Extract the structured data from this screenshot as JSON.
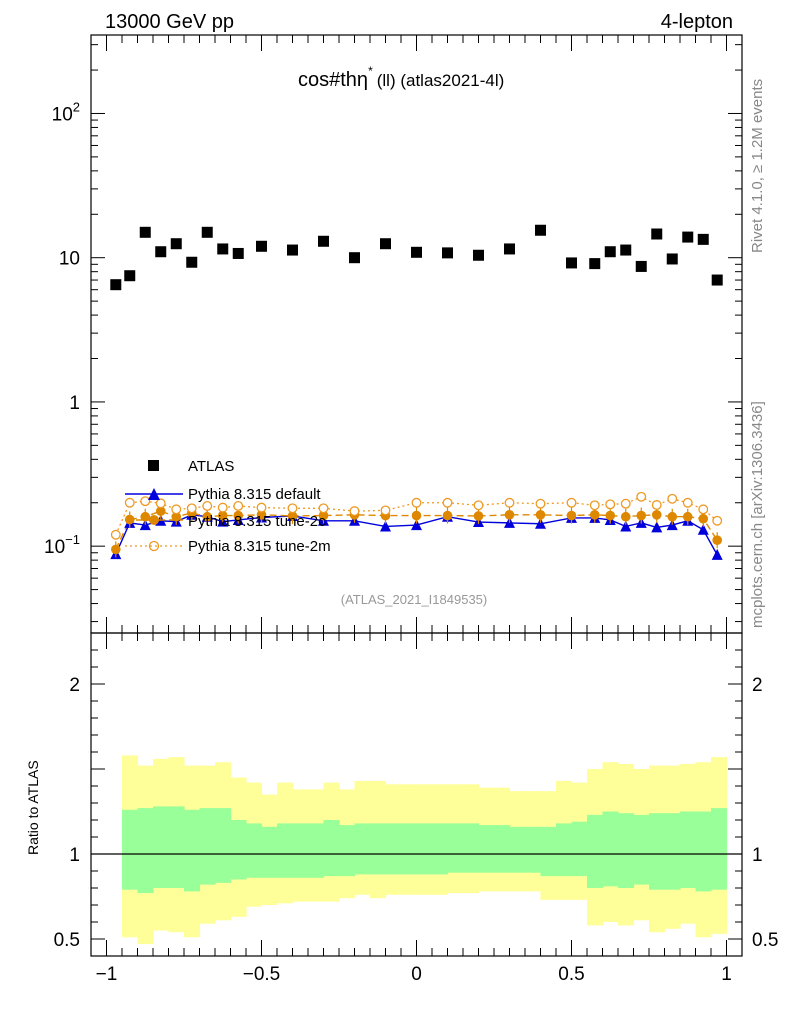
{
  "header": {
    "left": "13000 GeV pp",
    "right": "4-lepton"
  },
  "side": {
    "top": "Rivet 4.1.0, ≥ 1.2M events",
    "bottom": "mcplots.cern.ch [arXiv:1306.3436]"
  },
  "chart_data": {
    "type": "scatter",
    "title": "cos#thη",
    "title_sup": "*",
    "title_rest": "(ll) (atlas2021-4l)",
    "analysis_label": "(ATLAS_2021_I1849535)",
    "xlim": [
      -1.05,
      1.05
    ],
    "ylim_main": [
      0.025,
      350
    ],
    "yscale_main": "log",
    "ylim_ratio": [
      0.4,
      2.3
    ],
    "ylabel_ratio": "Ratio to ATLAS",
    "x_ticks": [
      {
        "v": -1,
        "label": "−1"
      },
      {
        "v": -0.5,
        "label": "−0.5"
      },
      {
        "v": 0,
        "label": "0"
      },
      {
        "v": 0.5,
        "label": "0.5"
      },
      {
        "v": 1,
        "label": "1"
      }
    ],
    "y_ticks_main": [
      {
        "v": 0.1,
        "label": "10",
        "exp": "−1"
      },
      {
        "v": 1,
        "label": "1",
        "exp": ""
      },
      {
        "v": 10,
        "label": "10",
        "exp": ""
      },
      {
        "v": 100,
        "label": "10",
        "exp": "2"
      }
    ],
    "y_ticks_ratio": [
      {
        "v": 0.5,
        "label": "0.5"
      },
      {
        "v": 1,
        "label": "1"
      },
      {
        "v": 2,
        "label": "2"
      }
    ],
    "legend": [
      "ATLAS",
      "Pythia 8.315 default",
      "Pythia 8.315 tune-2c",
      "Pythia 8.315 tune-2m"
    ],
    "x": [
      -0.97,
      -0.925,
      -0.875,
      -0.825,
      -0.775,
      -0.725,
      -0.675,
      -0.625,
      -0.575,
      -0.5,
      -0.4,
      -0.3,
      -0.2,
      -0.1,
      0.0,
      0.1,
      0.2,
      0.3,
      0.4,
      0.5,
      0.575,
      0.625,
      0.675,
      0.725,
      0.775,
      0.825,
      0.875,
      0.925,
      0.97
    ],
    "series": [
      {
        "name": "ATLAS",
        "color": "#000000",
        "marker": "square",
        "values": [
          6.5,
          7.5,
          15,
          11,
          12.5,
          9.3,
          15,
          11.5,
          10.7,
          12,
          11.3,
          13,
          10,
          12.5,
          10.9,
          10.8,
          10.4,
          11.5,
          15.5,
          9.2,
          9.1,
          11,
          11.3,
          8.7,
          14.6,
          9.8,
          13.9,
          13.4,
          7
        ]
      },
      {
        "name": "Pythia 8.315 default",
        "color": "#0000dd",
        "marker": "triangle",
        "values": [
          0.088,
          0.145,
          0.14,
          0.15,
          0.148,
          0.165,
          0.16,
          0.148,
          0.152,
          0.158,
          0.162,
          0.15,
          0.15,
          0.137,
          0.14,
          0.16,
          0.147,
          0.145,
          0.143,
          0.157,
          0.157,
          0.152,
          0.137,
          0.145,
          0.135,
          0.14,
          0.15,
          0.13,
          0.087
        ]
      },
      {
        "name": "Pythia 8.315 tune-2c",
        "color": "#dd8800",
        "marker": "circle",
        "values": [
          0.095,
          0.153,
          0.16,
          0.175,
          0.16,
          0.17,
          0.16,
          0.163,
          0.163,
          0.165,
          0.162,
          0.163,
          0.165,
          0.163,
          0.163,
          0.163,
          0.162,
          0.165,
          0.165,
          0.163,
          0.165,
          0.163,
          0.16,
          0.163,
          0.165,
          0.16,
          0.16,
          0.155,
          0.11
        ]
      },
      {
        "name": "Pythia 8.315 tune-2m",
        "color": "#ee9922",
        "marker": "open-circle",
        "values": [
          0.12,
          0.2,
          0.205,
          0.198,
          0.18,
          0.183,
          0.19,
          0.185,
          0.19,
          0.185,
          0.183,
          0.183,
          0.175,
          0.177,
          0.2,
          0.2,
          0.192,
          0.2,
          0.197,
          0.2,
          0.192,
          0.195,
          0.197,
          0.22,
          0.193,
          0.213,
          0.2,
          0.18,
          0.15
        ]
      }
    ],
    "ratio_bands": {
      "x_edges": [
        -0.95,
        -0.9,
        -0.85,
        -0.8,
        -0.75,
        -0.7,
        -0.65,
        -0.6,
        -0.55,
        -0.5,
        -0.45,
        -0.4,
        -0.35,
        -0.3,
        -0.25,
        -0.2,
        -0.15,
        -0.1,
        -0.05,
        0.0,
        0.05,
        0.1,
        0.15,
        0.2,
        0.25,
        0.3,
        0.35,
        0.4,
        0.45,
        0.5,
        0.55,
        0.6,
        0.65,
        0.7,
        0.75,
        0.8,
        0.85,
        0.9,
        0.95,
        1.0
      ],
      "yellow": [
        [
          0.51,
          1.58
        ],
        [
          0.47,
          1.52
        ],
        [
          0.55,
          1.56
        ],
        [
          0.54,
          1.57
        ],
        [
          0.51,
          1.52
        ],
        [
          0.59,
          1.52
        ],
        [
          0.61,
          1.54
        ],
        [
          0.63,
          1.45
        ],
        [
          0.69,
          1.42
        ],
        [
          0.7,
          1.35
        ],
        [
          0.71,
          1.42
        ],
        [
          0.72,
          1.38
        ],
        [
          0.72,
          1.38
        ],
        [
          0.72,
          1.42
        ],
        [
          0.74,
          1.38
        ],
        [
          0.76,
          1.43
        ],
        [
          0.74,
          1.43
        ],
        [
          0.76,
          1.41
        ],
        [
          0.76,
          1.41
        ],
        [
          0.76,
          1.41
        ],
        [
          0.76,
          1.41
        ],
        [
          0.77,
          1.41
        ],
        [
          0.77,
          1.41
        ],
        [
          0.78,
          1.39
        ],
        [
          0.78,
          1.39
        ],
        [
          0.78,
          1.37
        ],
        [
          0.78,
          1.37
        ],
        [
          0.73,
          1.37
        ],
        [
          0.73,
          1.43
        ],
        [
          0.73,
          1.42
        ],
        [
          0.58,
          1.5
        ],
        [
          0.6,
          1.54
        ],
        [
          0.58,
          1.53
        ],
        [
          0.61,
          1.5
        ],
        [
          0.54,
          1.52
        ],
        [
          0.56,
          1.52
        ],
        [
          0.59,
          1.53
        ],
        [
          0.51,
          1.54
        ],
        [
          0.53,
          1.57
        ]
      ],
      "green": [
        [
          0.79,
          1.26
        ],
        [
          0.77,
          1.27
        ],
        [
          0.8,
          1.28
        ],
        [
          0.8,
          1.28
        ],
        [
          0.78,
          1.26
        ],
        [
          0.82,
          1.27
        ],
        [
          0.83,
          1.27
        ],
        [
          0.85,
          1.2
        ],
        [
          0.86,
          1.18
        ],
        [
          0.86,
          1.16
        ],
        [
          0.86,
          1.18
        ],
        [
          0.86,
          1.18
        ],
        [
          0.86,
          1.18
        ],
        [
          0.87,
          1.2
        ],
        [
          0.87,
          1.17
        ],
        [
          0.88,
          1.18
        ],
        [
          0.88,
          1.18
        ],
        [
          0.88,
          1.18
        ],
        [
          0.88,
          1.18
        ],
        [
          0.88,
          1.18
        ],
        [
          0.88,
          1.18
        ],
        [
          0.89,
          1.18
        ],
        [
          0.89,
          1.18
        ],
        [
          0.89,
          1.17
        ],
        [
          0.89,
          1.17
        ],
        [
          0.89,
          1.16
        ],
        [
          0.89,
          1.16
        ],
        [
          0.87,
          1.16
        ],
        [
          0.87,
          1.18
        ],
        [
          0.87,
          1.19
        ],
        [
          0.8,
          1.23
        ],
        [
          0.81,
          1.25
        ],
        [
          0.8,
          1.24
        ],
        [
          0.82,
          1.23
        ],
        [
          0.79,
          1.24
        ],
        [
          0.79,
          1.24
        ],
        [
          0.8,
          1.25
        ],
        [
          0.78,
          1.25
        ],
        [
          0.79,
          1.27
        ]
      ]
    }
  }
}
